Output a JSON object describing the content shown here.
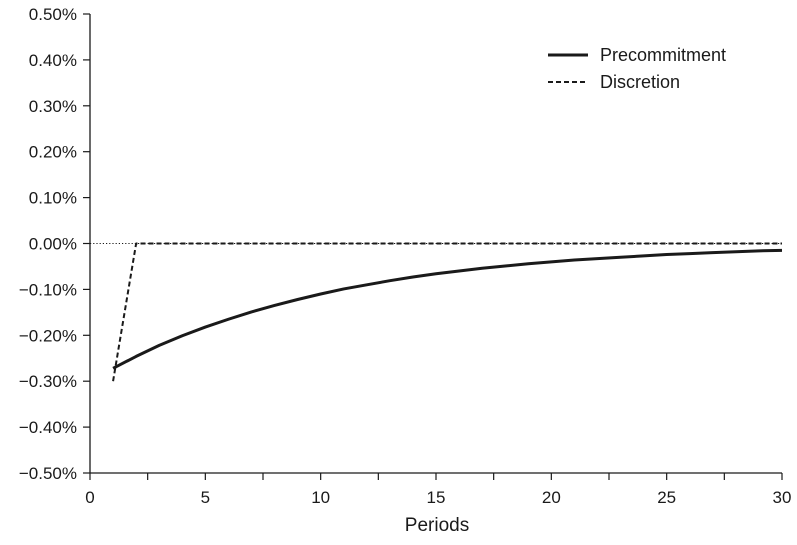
{
  "chart_data": {
    "type": "line",
    "xlabel": "Periods",
    "ylabel": "",
    "xlim": [
      0,
      30
    ],
    "ylim": [
      -0.5,
      0.5
    ],
    "x_ticks": [
      0,
      5,
      10,
      15,
      20,
      25,
      30
    ],
    "x_tick_labels": [
      "0",
      "5",
      "10",
      "15",
      "20",
      "25",
      "30"
    ],
    "y_ticks": [
      0.5,
      0.4,
      0.3,
      0.2,
      0.1,
      0.0,
      -0.1,
      -0.2,
      -0.3,
      -0.4,
      -0.5
    ],
    "y_tick_labels": [
      "0.50%",
      "0.40%",
      "0.30%",
      "0.20%",
      "0.10%",
      "0.00%",
      "−0.10%",
      "−0.20%",
      "−0.30%",
      "−0.40%",
      "−0.50%"
    ],
    "grid": false,
    "zero_line": "dotted",
    "legend_position": "top-right",
    "legend": [
      "Precommitment",
      "Discretion"
    ],
    "series": [
      {
        "name": "Precommitment",
        "style": "solid",
        "color": "#1a1a1a",
        "x": [
          1,
          2,
          3,
          4,
          5,
          6,
          7,
          8,
          9,
          10,
          11,
          12,
          13,
          14,
          15,
          16,
          17,
          18,
          19,
          20,
          21,
          22,
          23,
          24,
          25,
          26,
          27,
          28,
          29,
          30
        ],
        "values": [
          -0.272,
          -0.246,
          -0.222,
          -0.201,
          -0.182,
          -0.165,
          -0.149,
          -0.135,
          -0.122,
          -0.11,
          -0.099,
          -0.09,
          -0.081,
          -0.073,
          -0.066,
          -0.06,
          -0.054,
          -0.049,
          -0.044,
          -0.04,
          -0.036,
          -0.033,
          -0.03,
          -0.027,
          -0.024,
          -0.022,
          -0.02,
          -0.018,
          -0.016,
          -0.015
        ]
      },
      {
        "name": "Discretion",
        "style": "dashed",
        "color": "#1a1a1a",
        "x": [
          1,
          2,
          3,
          4,
          5,
          6,
          7,
          8,
          9,
          10,
          11,
          12,
          13,
          14,
          15,
          16,
          17,
          18,
          19,
          20,
          21,
          22,
          23,
          24,
          25,
          26,
          27,
          28,
          29,
          30
        ],
        "values": [
          -0.3,
          0.0,
          0.0,
          0.0,
          0.0,
          0.0,
          0.0,
          0.0,
          0.0,
          0.0,
          0.0,
          0.0,
          0.0,
          0.0,
          0.0,
          0.0,
          0.0,
          0.0,
          0.0,
          0.0,
          0.0,
          0.0,
          0.0,
          0.0,
          0.0,
          0.0,
          0.0,
          0.0,
          0.0,
          0.0
        ]
      }
    ]
  }
}
